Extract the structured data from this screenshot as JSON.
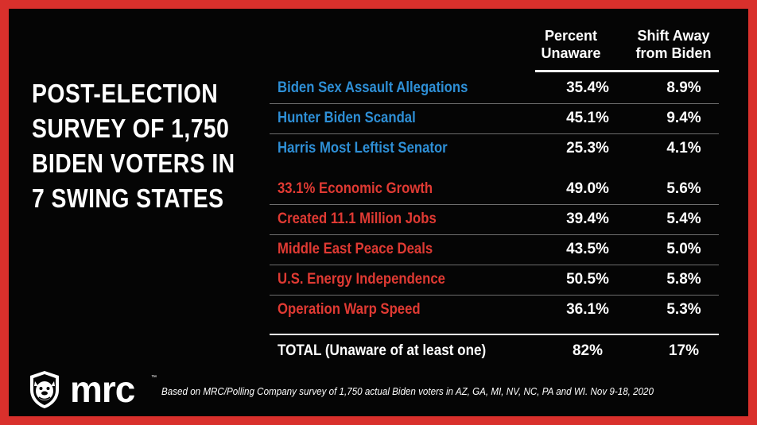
{
  "title_lines": [
    "POST-ELECTION",
    "SURVEY OF 1,750",
    "BIDEN VOTERS IN",
    "7 SWING STATES"
  ],
  "headers": {
    "col1": [
      "Percent",
      "Unaware"
    ],
    "col2": [
      "Shift Away",
      "from Biden"
    ]
  },
  "colors": {
    "blue_text": "#2e8fd6",
    "red_text": "#e03a33",
    "frame": "#d9302c"
  },
  "rows": [
    {
      "label": "Biden Sex Assault Allegations",
      "unaware": "35.4%",
      "shift": "8.9%",
      "color": "blue"
    },
    {
      "label": "Hunter Biden Scandal",
      "unaware": "45.1%",
      "shift": "9.4%",
      "color": "blue"
    },
    {
      "label": "Harris Most Leftist Senator",
      "unaware": "25.3%",
      "shift": "4.1%",
      "color": "blue"
    },
    {
      "label": "33.1% Economic Growth",
      "unaware": "49.0%",
      "shift": "5.6%",
      "color": "red"
    },
    {
      "label": "Created 11.1 Million Jobs",
      "unaware": "39.4%",
      "shift": "5.4%",
      "color": "red"
    },
    {
      "label": "Middle East Peace Deals",
      "unaware": "43.5%",
      "shift": "5.0%",
      "color": "red"
    },
    {
      "label": "U.S. Energy Independence",
      "unaware": "50.5%",
      "shift": "5.8%",
      "color": "red"
    },
    {
      "label": "Operation Warp Speed",
      "unaware": "36.1%",
      "shift": "5.3%",
      "color": "red"
    }
  ],
  "total": {
    "label_bold": "TOTAL",
    "label_rest": " (Unaware of at least one)",
    "unaware": "82%",
    "shift": "17%"
  },
  "logo": {
    "text": "mrc",
    "tm": "™",
    "icon": "bulldog-icon"
  },
  "footnote": "Based on MRC/Polling Company survey of 1,750 actual Biden voters in AZ, GA, MI, NV, NC, PA and WI. Nov 9-18, 2020"
}
